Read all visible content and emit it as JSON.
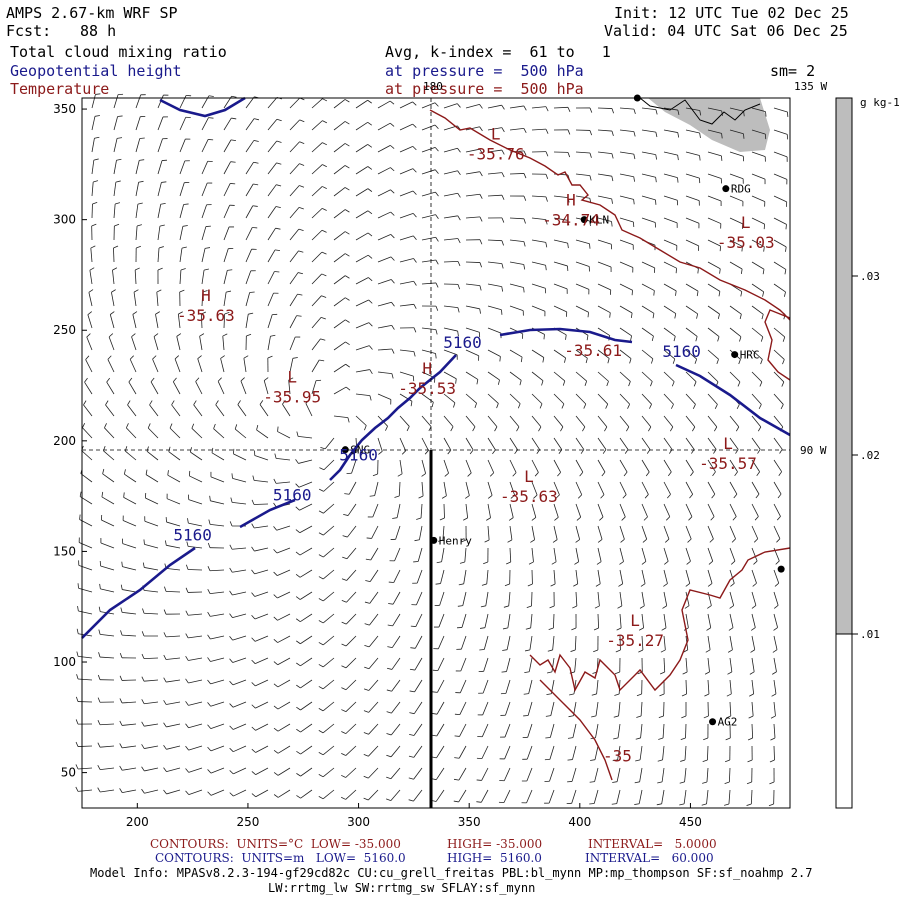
{
  "header": {
    "model": "AMPS 2.67-km WRF SP",
    "fcst_label": "Fcst:",
    "fcst_value": "88 h",
    "init": "Init: 12 UTC Tue 02 Dec 25",
    "valid": "Valid: 04 UTC Sat 06 Dec 25",
    "field1": "Total cloud mixing ratio",
    "field2": "Geopotential height",
    "field3": "Temperature",
    "avg": "Avg, k-index =  61 to   1",
    "press_blue": "at pressure =  500 hPa",
    "press_red": "at pressure =  500 hPa",
    "sm": "sm= 2"
  },
  "colors": {
    "blue": "#1a1a8c",
    "red": "#8c1a1a",
    "shade": "#bdbdbd"
  },
  "axes": {
    "x_ticks": [
      200,
      250,
      300,
      350,
      400,
      450
    ],
    "y_ticks": [
      50,
      100,
      150,
      200,
      250,
      300,
      350
    ],
    "xlim": [
      175,
      495
    ],
    "ylim": [
      34,
      355
    ]
  },
  "map_labels": {
    "lon_180": "180",
    "lon_135": "135 W",
    "lon_90": "90 W"
  },
  "stations": [
    {
      "name": "RDG",
      "x": 466,
      "y": 314
    },
    {
      "name": "KLN",
      "x": 402,
      "y": 300
    },
    {
      "name": "HRC",
      "x": 470,
      "y": 239
    },
    {
      "name": "SNG",
      "x": 294,
      "y": 196
    },
    {
      "name": "Henry",
      "x": 334,
      "y": 155
    },
    {
      "name": "AG2",
      "x": 460,
      "y": 73
    },
    {
      "name": "",
      "x": 426,
      "y": 355
    },
    {
      "name": "",
      "x": 491,
      "y": 142
    }
  ],
  "extrema": [
    {
      "type": "L",
      "value": "-35.76",
      "x": 362,
      "y": 330
    },
    {
      "type": "H",
      "value": "-34.74",
      "x": 396,
      "y": 300
    },
    {
      "type": "L",
      "value": "-35.03",
      "x": 475,
      "y": 290
    },
    {
      "type": "H",
      "value": "-35.63",
      "x": 231,
      "y": 257
    },
    {
      "type": "L",
      "value": "-35.95",
      "x": 270,
      "y": 220
    },
    {
      "type": "H",
      "value": "-35.53",
      "x": 331,
      "y": 224
    },
    {
      "type": "",
      "value": "-35.61",
      "x": 406,
      "y": 241
    },
    {
      "type": "L",
      "value": "-35.57",
      "x": 467,
      "y": 190
    },
    {
      "type": "L",
      "value": "-35.63",
      "x": 377,
      "y": 175
    },
    {
      "type": "L",
      "value": "-35.27",
      "x": 425,
      "y": 110
    }
  ],
  "contour_labels": [
    {
      "text": "5160",
      "x": 225,
      "y": 155,
      "cls": "blue"
    },
    {
      "text": "5160",
      "x": 270,
      "y": 173,
      "cls": "blue"
    },
    {
      "text": "5160",
      "x": 300,
      "y": 191,
      "cls": "blue"
    },
    {
      "text": "5160",
      "x": 347,
      "y": 242,
      "cls": "blue"
    },
    {
      "text": "5160",
      "x": 446,
      "y": 238,
      "cls": "blue"
    },
    {
      "text": "-35",
      "x": 417,
      "y": 55,
      "cls": "red"
    }
  ],
  "colorbar": {
    "unit": "g kg-1",
    "levels": [
      ".03",
      ".02",
      ".01"
    ]
  },
  "footer": {
    "line1_left": "CONTOURS:  UNITS=°C  LOW= -35.000",
    "line1_mid": "HIGH= -35.000",
    "line1_right": "INTERVAL=   5.0000",
    "line2_left": "CONTOURS:  UNITS=m   LOW=  5160.0",
    "line2_mid": "HIGH=  5160.0",
    "line2_right": "INTERVAL=   60.000",
    "info1": "Model Info: MPASv8.2.3-194-gf29cd82c CU:cu_grell_freitas PBL:bl_mynn MP:mp_thompson SF:sf_noahmp 2.7",
    "info2": "LW:rrtmg_lw SW:rrtmg_sw SFLAY:sf_mynn"
  }
}
